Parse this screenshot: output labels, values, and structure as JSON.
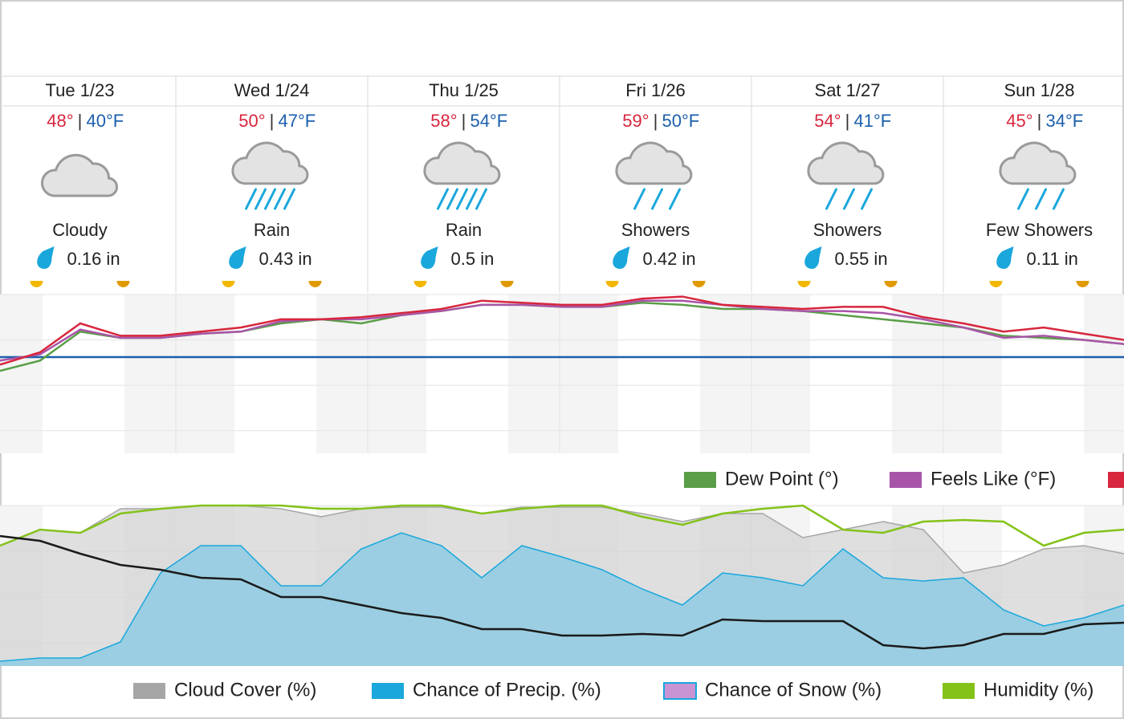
{
  "days": [
    {
      "label": "Tue 1/23",
      "high": "48°",
      "low": "40°F",
      "condition": "Cloudy",
      "precip": "0.16 in"
    },
    {
      "label": "Wed 1/24",
      "high": "50°",
      "low": "47°F",
      "condition": "Rain",
      "precip": "0.43 in"
    },
    {
      "label": "Thu 1/25",
      "high": "58°",
      "low": "54°F",
      "condition": "Rain",
      "precip": "0.5 in"
    },
    {
      "label": "Fri 1/26",
      "high": "59°",
      "low": "50°F",
      "condition": "Showers",
      "precip": "0.42 in"
    },
    {
      "label": "Sat 1/27",
      "high": "54°",
      "low": "41°F",
      "condition": "Showers",
      "precip": "0.55 in"
    },
    {
      "label": "Sun 1/28",
      "high": "45°",
      "low": "34°F",
      "condition": "Few Showers",
      "precip": "0.11 in"
    }
  ],
  "chart_data": [
    {
      "type": "line",
      "ylim": [
        -15,
        62
      ],
      "series": [
        {
          "name": "Dew Point (°)",
          "color": "#5a9e47",
          "values": [
            25,
            30,
            44,
            41,
            41,
            43,
            44,
            48,
            50,
            48,
            52,
            54,
            57,
            57,
            56,
            56,
            58,
            57,
            55,
            55,
            54,
            52,
            50,
            48,
            46,
            42,
            41,
            40,
            38
          ]
        },
        {
          "name": "Feels Like (°F)",
          "color": "#a855a8",
          "values": [
            30,
            33,
            45,
            41,
            41,
            43,
            44,
            49,
            50,
            50,
            52,
            54,
            57,
            57,
            56,
            56,
            59,
            59,
            57,
            55,
            54,
            54,
            53,
            50,
            46,
            41,
            42,
            40,
            38
          ]
        },
        {
          "color": "#d7263d",
          "values": [
            28,
            34,
            48,
            42,
            42,
            44,
            46,
            50,
            50,
            51,
            53,
            55,
            59,
            58,
            57,
            57,
            60,
            61,
            57,
            56,
            55,
            56,
            56,
            51,
            48,
            44,
            46,
            43,
            40
          ]
        }
      ]
    },
    {
      "type": "area",
      "ylim": [
        0,
        100
      ],
      "series": [
        {
          "name": "Cloud Cover (%)",
          "color": "#a6a6a6",
          "values": [
            75,
            85,
            83,
            98,
            98,
            100,
            100,
            98,
            93,
            98,
            99,
            99,
            95,
            99,
            99,
            99,
            95,
            90,
            95,
            95,
            80,
            85,
            90,
            85,
            58,
            63,
            73,
            75,
            70
          ]
        },
        {
          "name": "Chance of Precip. (%)",
          "color": "#1aa7dc",
          "values": [
            3,
            5,
            5,
            15,
            58,
            75,
            75,
            50,
            50,
            73,
            83,
            75,
            55,
            75,
            68,
            60,
            48,
            38,
            58,
            55,
            50,
            73,
            55,
            53,
            55,
            35,
            25,
            30,
            38
          ]
        },
        {
          "name": "Chance of Snow (%)",
          "color": "#c994d4"
        },
        {
          "name": "Humidity (%)",
          "color": "#84c21a",
          "values": [
            75,
            85,
            83,
            95,
            98,
            100,
            100,
            100,
            98,
            98,
            100,
            100,
            95,
            98,
            100,
            100,
            93,
            88,
            95,
            98,
            100,
            85,
            83,
            90,
            91,
            90,
            75,
            83,
            85
          ]
        },
        {
          "color": "#1a1a1a",
          "values": [
            81,
            78,
            70,
            63,
            60,
            55,
            54,
            43,
            43,
            38,
            33,
            30,
            23,
            23,
            19,
            19,
            20,
            19,
            29,
            28,
            28,
            28,
            13,
            11,
            13,
            20,
            20,
            26,
            27
          ]
        }
      ]
    }
  ]
}
